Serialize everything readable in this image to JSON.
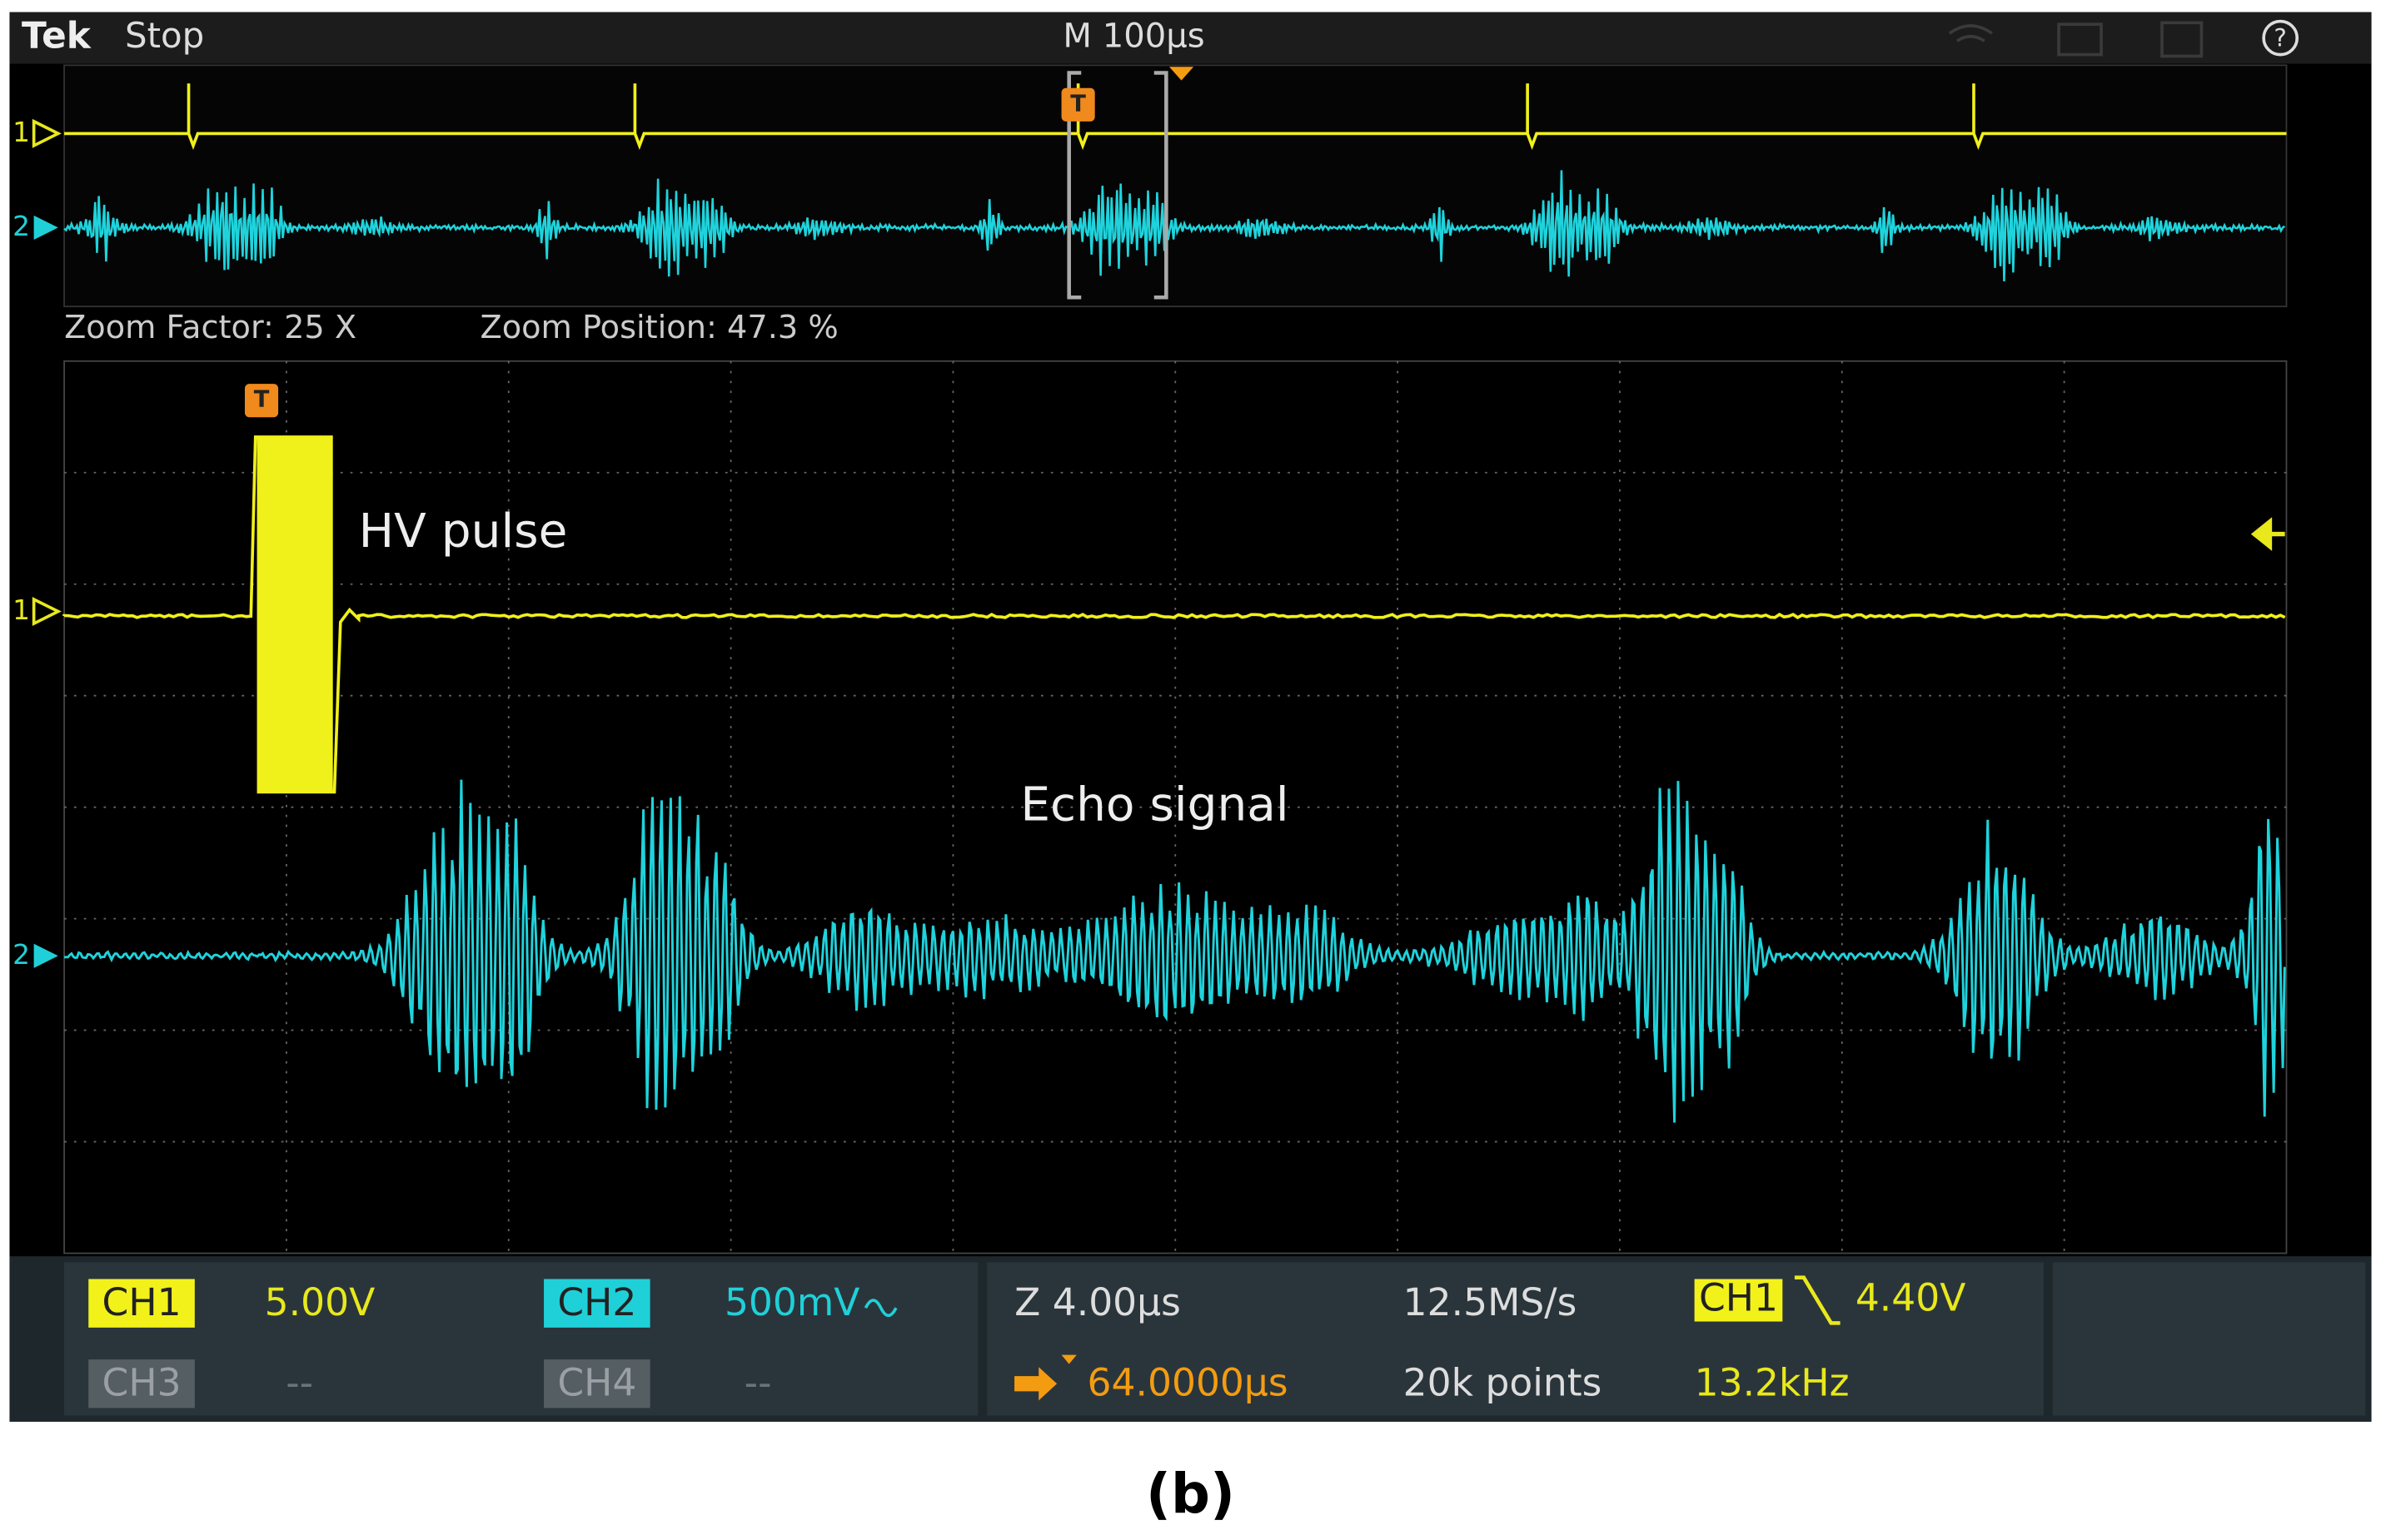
{
  "header": {
    "brand": "Tek",
    "state": "Stop",
    "timebase": "M 100µs",
    "help": "?"
  },
  "overview": {
    "ch1_marker": "1",
    "ch2_marker": "2",
    "trigger_marker": "T"
  },
  "zoom": {
    "factor": "Zoom Factor: 25 X",
    "position": "Zoom Position: 47.3 %"
  },
  "main": {
    "ch1_marker": "1",
    "ch2_marker": "2",
    "trigger_marker": "T",
    "annotations": [
      "HV pulse",
      "Echo signal"
    ]
  },
  "status": {
    "channels": [
      {
        "label": "CH1",
        "scale": "5.00V"
      },
      {
        "label": "CH2",
        "scale": "500mV"
      },
      {
        "label": "CH3",
        "scale": "--"
      },
      {
        "label": "CH4",
        "scale": "--"
      }
    ],
    "horizontal": {
      "zoom": "Z 4.00µs",
      "position": "64.0000µs",
      "sample_rate": "12.5MS/s",
      "record_length": "20k points"
    },
    "trigger": {
      "source": "CH1",
      "level": "4.40V",
      "frequency": "13.2kHz"
    }
  },
  "caption": "(b)"
}
